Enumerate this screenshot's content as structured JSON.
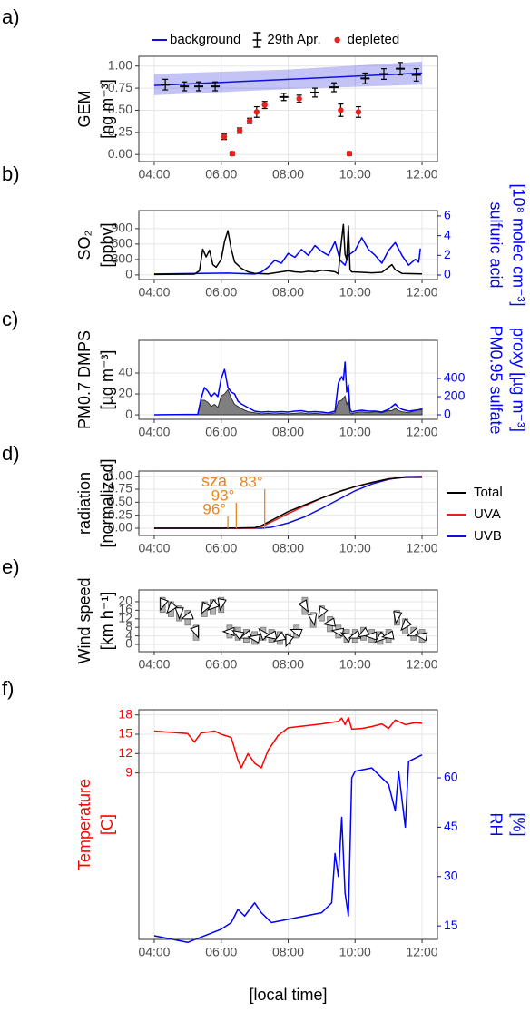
{
  "chart_data": [
    {
      "type": "scatter",
      "panel_label": "a)",
      "ylabel": [
        "GEM",
        "[ng m⁻³]"
      ],
      "xlim": [
        3.54,
        12.46
      ],
      "xticks": [
        {
          "value": 4,
          "label": "04:00"
        },
        {
          "value": 6,
          "label": "06:00"
        },
        {
          "value": 8,
          "label": "08:00"
        },
        {
          "value": 10,
          "label": "10:00"
        },
        {
          "value": 12,
          "label": "12:00"
        }
      ],
      "ylim": [
        -0.08,
        1.11
      ],
      "yticks": [
        {
          "value": 0,
          "label": "0.00"
        },
        {
          "value": 0.25,
          "label": "0.25"
        },
        {
          "value": 0.5,
          "label": "0.50"
        },
        {
          "value": 0.75,
          "label": "0.75"
        },
        {
          "value": 1,
          "label": "1.00"
        }
      ],
      "grid": true,
      "legend": "top",
      "errorbar_color": "#000000",
      "series": [
        {
          "name": "background",
          "color": "#1010dd",
          "style": "line",
          "x": [
            4,
            8,
            12
          ],
          "values": [
            0.78,
            0.85,
            0.92
          ],
          "low": [
            0.67,
            0.74,
            0.79
          ],
          "high": [
            0.91,
            0.96,
            1.05
          ]
        },
        {
          "name": "29th Apr.",
          "color": "#000000",
          "style": "points",
          "shape": "dash",
          "x": [
            4.33,
            4.9,
            5.33,
            5.82,
            7.87,
            8.8,
            9.37,
            10.3,
            10.86,
            11.35,
            11.83
          ],
          "values": [
            0.79,
            0.77,
            0.77,
            0.77,
            0.65,
            0.7,
            0.76,
            0.86,
            0.91,
            0.97,
            0.9
          ],
          "errors": [
            0.06,
            0.05,
            0.05,
            0.05,
            0.04,
            0.05,
            0.05,
            0.06,
            0.06,
            0.07,
            0.07
          ]
        },
        {
          "name": "depleted",
          "color": "#e8201e",
          "style": "points",
          "shape": "circle",
          "x": [
            6.09,
            6.33,
            6.55,
            6.85,
            7.06,
            7.3,
            8.33,
            9.57,
            9.83,
            10.1
          ],
          "values": [
            0.2,
            0.01,
            0.27,
            0.38,
            0.48,
            0.56,
            0.63,
            0.5,
            0.01,
            0.48
          ],
          "errors": [
            0.03,
            0.02,
            0.03,
            0.03,
            0.06,
            0.04,
            0.04,
            0.07,
            0.02,
            0.06
          ]
        }
      ]
    },
    {
      "type": "line",
      "panel_label": "b)",
      "ylabel": [
        "SO₂",
        "[ppbv]"
      ],
      "y2label": [
        "sulfuric acid",
        "[10⁸ molec cm⁻³]"
      ],
      "y2label_color": "#0000ff",
      "xlim": [
        3.54,
        12.46
      ],
      "xticks": [
        {
          "value": 4,
          "label": "04:00"
        },
        {
          "value": 6,
          "label": "06:00"
        },
        {
          "value": 8,
          "label": "08:00"
        },
        {
          "value": 10,
          "label": "10:00"
        },
        {
          "value": 12,
          "label": "12:00"
        }
      ],
      "ylim": [
        -90,
        1250
      ],
      "yticks": [
        0,
        300,
        600,
        900
      ],
      "y2lim": [
        -0.46,
        6.55
      ],
      "y2ticks": [
        0,
        2,
        4,
        6
      ],
      "grid": true,
      "series": [
        {
          "color": "#0000ff",
          "axis": "y2",
          "x": [
            4,
            6.2,
            7.0,
            7.2,
            7.4,
            7.6,
            7.8,
            8.0,
            8.2,
            8.4,
            8.6,
            8.8,
            9.0,
            9.2,
            9.4,
            9.55,
            9.7,
            9.8,
            10.0,
            10.2,
            10.4,
            10.6,
            10.8,
            11.0,
            11.2,
            11.4,
            11.6,
            11.8,
            11.9,
            11.95
          ],
          "values": [
            0.1,
            0.2,
            0.1,
            0.3,
            0.8,
            1.5,
            1.2,
            2.2,
            1.8,
            2.6,
            2.0,
            3.0,
            2.4,
            2.0,
            3.4,
            1.5,
            1.0,
            2.0,
            2.5,
            3.8,
            2.6,
            2.0,
            1.2,
            2.5,
            3.3,
            2.0,
            1.0,
            1.6,
            1.3,
            2.7
          ]
        },
        {
          "color": "#000000",
          "x": [
            4,
            5.2,
            5.35,
            5.45,
            5.55,
            5.65,
            5.75,
            5.85,
            6.0,
            6.1,
            6.2,
            6.3,
            6.4,
            6.6,
            6.8,
            7.0,
            7.4,
            7.6,
            7.8,
            8.0,
            8.2,
            8.4,
            8.6,
            8.8,
            9.0,
            9.2,
            9.4,
            9.5,
            9.55,
            9.6,
            9.65,
            9.7,
            9.75,
            9.8,
            9.85,
            9.9,
            10.2,
            10.5,
            10.8,
            11.0,
            11.1,
            11.2,
            11.4,
            12
          ],
          "values": [
            10,
            15,
            80,
            500,
            350,
            480,
            200,
            150,
            300,
            650,
            860,
            500,
            250,
            130,
            60,
            30,
            20,
            40,
            60,
            80,
            60,
            50,
            70,
            60,
            90,
            80,
            60,
            20,
            400,
            700,
            980,
            400,
            300,
            950,
            100,
            60,
            50,
            40,
            50,
            150,
            200,
            100,
            30,
            20
          ]
        }
      ]
    },
    {
      "type": "line",
      "panel_label": "c)",
      "ylabel": [
        "PM0.7  DMPS",
        "[µg m⁻³]"
      ],
      "y2label": [
        "PM0.95 sulfate",
        "proxy [µg m⁻³]"
      ],
      "y2label_color": "#0000ff",
      "xlim": [
        3.54,
        12.46
      ],
      "xticks": [
        {
          "value": 4,
          "label": "04:00"
        },
        {
          "value": 6,
          "label": "06:00"
        },
        {
          "value": 8,
          "label": "08:00"
        },
        {
          "value": 10,
          "label": "10:00"
        },
        {
          "value": 12,
          "label": "12:00"
        }
      ],
      "ylim": [
        -4.3,
        71.3
      ],
      "yticks": [
        0,
        20,
        40
      ],
      "y2lim": [
        -50,
        820
      ],
      "y2ticks": [
        0,
        200,
        400
      ],
      "grid": true,
      "x": [
        4,
        5.3,
        5.4,
        5.5,
        5.6,
        5.7,
        5.8,
        5.9,
        6.0,
        6.1,
        6.2,
        6.3,
        6.4,
        6.5,
        6.6,
        6.8,
        7.0,
        7.2,
        7.4,
        7.6,
        7.8,
        8.0,
        8.2,
        8.4,
        8.6,
        8.8,
        9.0,
        9.2,
        9.4,
        9.5,
        9.6,
        9.65,
        9.7,
        9.75,
        9.8,
        9.85,
        9.9,
        10.0,
        10.2,
        10.4,
        10.6,
        10.8,
        11.0,
        11.1,
        11.2,
        11.3,
        11.4,
        11.6,
        11.8,
        12
      ],
      "series": [
        {
          "color": "#7f7f7f",
          "style": "area",
          "values": [
            0,
            0.5,
            14,
            14,
            12,
            8,
            10,
            7,
            18,
            20,
            24,
            16,
            10,
            8,
            6,
            3,
            2,
            1,
            1.5,
            1,
            1.5,
            1,
            1.5,
            2,
            1,
            1.5,
            1,
            0.5,
            2,
            13,
            14,
            16,
            18,
            10,
            14,
            2,
            1,
            2,
            3,
            2,
            3,
            2,
            4,
            4,
            6,
            4,
            3,
            2,
            4,
            6
          ]
        },
        {
          "color": "#0000ff",
          "axis": "y2",
          "values": [
            0,
            5,
            180,
            300,
            260,
            200,
            240,
            200,
            400,
            500,
            300,
            250,
            230,
            150,
            120,
            80,
            40,
            30,
            35,
            30,
            35,
            30,
            40,
            45,
            30,
            35,
            30,
            20,
            40,
            350,
            420,
            380,
            580,
            250,
            330,
            60,
            30,
            40,
            50,
            40,
            40,
            30,
            60,
            90,
            120,
            80,
            60,
            40,
            50,
            60
          ]
        }
      ]
    },
    {
      "type": "line",
      "panel_label": "d)",
      "ylabel": [
        "radiation",
        "[normalized]"
      ],
      "xlim": [
        3.54,
        12.46
      ],
      "xticks": [
        {
          "value": 4,
          "label": "04:00"
        },
        {
          "value": 6,
          "label": "06:00"
        },
        {
          "value": 8,
          "label": "08:00"
        },
        {
          "value": 10,
          "label": "10:00"
        },
        {
          "value": 12,
          "label": "12:00"
        }
      ],
      "ylim": [
        -0.14,
        1.1
      ],
      "yticks": [
        {
          "value": 0,
          "label": "0.00"
        },
        {
          "value": 0.25,
          "label": "0.25"
        },
        {
          "value": 0.5,
          "label": "0.50"
        },
        {
          "value": 0.75,
          "label": "0.75"
        },
        {
          "value": 1,
          "label": "1.00"
        }
      ],
      "grid": true,
      "legend": "right",
      "annotation_title": "sza",
      "annotation_color": "#e8871e",
      "annotations": [
        {
          "label": "96°",
          "x": 6.2
        },
        {
          "label": "93°",
          "x": 6.45
        },
        {
          "label": "83°",
          "x": 7.3
        }
      ],
      "x": [
        4,
        5,
        6,
        7,
        7.2,
        7.5,
        8,
        8.5,
        9,
        9.5,
        10,
        10.5,
        11,
        11.5,
        12
      ],
      "series": [
        {
          "name": "UVB",
          "color": "#1010dd",
          "values": [
            0,
            0,
            0,
            0,
            0,
            0.02,
            0.1,
            0.22,
            0.38,
            0.55,
            0.72,
            0.85,
            0.94,
            0.99,
            1.0
          ]
        },
        {
          "name": "UVA",
          "color": "#e8201e",
          "values": [
            0,
            0,
            0,
            0,
            0.03,
            0.12,
            0.28,
            0.43,
            0.58,
            0.7,
            0.8,
            0.88,
            0.95,
            0.98,
            0.99
          ]
        },
        {
          "name": "Total",
          "color": "#000000",
          "values": [
            0,
            0,
            0,
            0.01,
            0.05,
            0.15,
            0.32,
            0.45,
            0.58,
            0.7,
            0.8,
            0.88,
            0.95,
            0.98,
            0.98
          ]
        }
      ]
    },
    {
      "type": "wind",
      "panel_label": "e)",
      "ylabel": [
        "Wind speed",
        "[km h⁻¹]"
      ],
      "xlim": [
        3.54,
        12.46
      ],
      "xticks": [
        {
          "value": 4,
          "label": "04:00"
        },
        {
          "value": 6,
          "label": "06:00"
        },
        {
          "value": 8,
          "label": "08:00"
        },
        {
          "value": 10,
          "label": "10:00"
        },
        {
          "value": 12,
          "label": "12:00"
        }
      ],
      "ylim": [
        -3.4,
        25.5
      ],
      "yticks": [
        0,
        4,
        8,
        12,
        16,
        20
      ],
      "grid": true,
      "color": "#b0b0b0",
      "x": [
        4.25,
        4.5,
        4.75,
        5,
        5.25,
        5.5,
        5.75,
        6,
        6.25,
        6.5,
        6.75,
        7,
        7.25,
        7.5,
        7.75,
        8,
        8.25,
        8.5,
        8.75,
        9,
        9.25,
        9.5,
        9.75,
        10,
        10.25,
        10.5,
        10.75,
        11,
        11.25,
        11.5,
        11.75,
        12
      ],
      "values": [
        19,
        17,
        15,
        13,
        6,
        17,
        18,
        19,
        6,
        5,
        4,
        3,
        5,
        4,
        3,
        2,
        6,
        18,
        12,
        15,
        10,
        6,
        4,
        4,
        5,
        4,
        3,
        4,
        13,
        9,
        5,
        4
      ],
      "low": [
        15,
        13,
        11,
        9,
        2,
        13,
        14,
        15,
        3,
        2,
        1,
        0,
        2,
        1,
        0,
        0,
        3,
        14,
        8,
        11,
        6,
        3,
        1,
        1,
        2,
        1,
        0,
        1,
        9,
        5,
        2,
        1
      ],
      "high": [
        22,
        20,
        18,
        16,
        9,
        20,
        21,
        22,
        9,
        8,
        7,
        6,
        8,
        7,
        6,
        5,
        9,
        22,
        15,
        18,
        13,
        9,
        7,
        7,
        8,
        7,
        6,
        7,
        16,
        12,
        8,
        7
      ],
      "directions": [
        200,
        220,
        180,
        250,
        160,
        210,
        230,
        190,
        270,
        300,
        250,
        280,
        320,
        260,
        240,
        200,
        290,
        150,
        170,
        210,
        260,
        280,
        300,
        250,
        240,
        270,
        230,
        260,
        190,
        220,
        250,
        280
      ]
    },
    {
      "type": "line",
      "panel_label": "f)",
      "ylabel": [
        "Temperature",
        "[C]"
      ],
      "ylabel_color": "#ff0000",
      "y2label": [
        "RH",
        "[%]"
      ],
      "y2label_color": "#0000ff",
      "xlabel": "[local time]",
      "xlim": [
        3.54,
        12.46
      ],
      "xticks": [
        {
          "value": 4,
          "label": "04:00"
        },
        {
          "value": 6,
          "label": "06:00"
        },
        {
          "value": 8,
          "label": "08:00"
        },
        {
          "value": 10,
          "label": "10:00"
        },
        {
          "value": 12,
          "label": "12:00"
        }
      ],
      "ylim": [
        -16.8,
        18.8
      ],
      "yticks": [
        9,
        12,
        15,
        18
      ],
      "y2lim": [
        10.9,
        80.7
      ],
      "y2ticks": [
        15,
        30,
        45,
        60
      ],
      "grid": true,
      "series": [
        {
          "color": "#ff0000",
          "x": [
            4,
            4.5,
            5,
            5.2,
            5.4,
            5.8,
            6.0,
            6.3,
            6.5,
            6.6,
            6.8,
            7.0,
            7.2,
            7.4,
            7.7,
            8.0,
            8.5,
            9,
            9.5,
            9.6,
            9.7,
            9.8,
            9.9,
            10.2,
            10.5,
            10.8,
            11,
            11.2,
            11.5,
            11.8,
            12
          ],
          "values": [
            15.5,
            15.3,
            15.1,
            13.8,
            15.2,
            15.5,
            15.0,
            14.5,
            11,
            9.8,
            12,
            10.5,
            9.8,
            12.5,
            14.8,
            16,
            16.3,
            16.6,
            17,
            17.5,
            16.5,
            17.6,
            15.8,
            15.9,
            16.2,
            16.6,
            15.9,
            17.2,
            16.5,
            16.8,
            16.7
          ]
        },
        {
          "color": "#0000ff",
          "axis": "y2",
          "x": [
            4,
            4.5,
            5,
            5.5,
            6,
            6.3,
            6.5,
            6.7,
            7,
            7.2,
            7.5,
            8,
            8.5,
            9,
            9.3,
            9.4,
            9.5,
            9.6,
            9.7,
            9.8,
            9.9,
            10,
            10.5,
            11,
            11.2,
            11.3,
            11.5,
            11.6,
            11.8,
            12
          ],
          "values": [
            12,
            11,
            10,
            12,
            14,
            16,
            20,
            18,
            22,
            19,
            16,
            17,
            18,
            19,
            22,
            37,
            30,
            48,
            25,
            18,
            60,
            62,
            63,
            58,
            50,
            62,
            45,
            65,
            66,
            67
          ]
        }
      ]
    }
  ]
}
